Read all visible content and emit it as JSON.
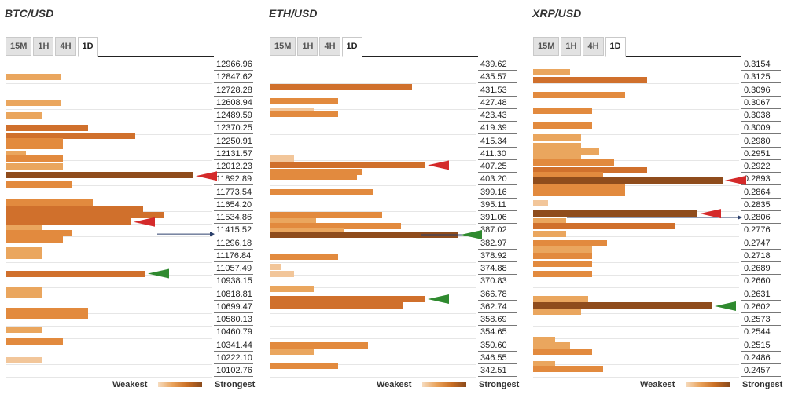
{
  "panels": [
    {
      "title": "BTC/USD",
      "tabs": [
        "15M",
        "1H",
        "4H",
        "1D"
      ],
      "active_tab": "1D",
      "prices": [
        "12966.96",
        "12847.62",
        "12728.28",
        "12608.94",
        "12489.59",
        "12370.25",
        "12250.91",
        "12131.57",
        "12012.23",
        "11892.89",
        "11773.54",
        "11654.20",
        "11534.86",
        "11415.52",
        "11296.18",
        "11176.84",
        "11057.49",
        "10938.15",
        "10818.81",
        "10699.47",
        "10580.13",
        "10460.79",
        "10341.44",
        "10222.10",
        "10102.76"
      ],
      "current_price_level": 13.3,
      "bars": [
        [
          1,
          1,
          71
        ],
        [
          3,
          1,
          71
        ],
        [
          4,
          1,
          46
        ],
        [
          5,
          3,
          105
        ],
        [
          5.6,
          3,
          165
        ],
        [
          6,
          2,
          73
        ],
        [
          6.4,
          2,
          73
        ],
        [
          7,
          1,
          26
        ],
        [
          7.4,
          2,
          73
        ],
        [
          8,
          1,
          73
        ],
        [
          8.7,
          4,
          239
        ],
        [
          9.4,
          2,
          84
        ],
        [
          10.8,
          2,
          111
        ],
        [
          11.3,
          3,
          175
        ],
        [
          11.8,
          3,
          202
        ],
        [
          12.3,
          3,
          160
        ],
        [
          12.8,
          1,
          46
        ],
        [
          13.2,
          2,
          84
        ],
        [
          13.7,
          2,
          73
        ],
        [
          14.6,
          1,
          46
        ],
        [
          15,
          1,
          46
        ],
        [
          16.4,
          3,
          178
        ],
        [
          17.7,
          1,
          46
        ],
        [
          18.1,
          1,
          46
        ],
        [
          19.3,
          2,
          105
        ],
        [
          19.7,
          2,
          105
        ],
        [
          20.8,
          1,
          46
        ],
        [
          21.7,
          2,
          73
        ],
        [
          23.2,
          0,
          46
        ]
      ],
      "arrows": [
        {
          "level": 8.75,
          "color": "#d42a2a"
        },
        {
          "level": 12.35,
          "color": "#d42a2a"
        },
        {
          "level": 16.4,
          "color": "#2f8a2f"
        }
      ]
    },
    {
      "title": "ETH/USD",
      "tabs": [
        "15M",
        "1H",
        "4H",
        "1D"
      ],
      "active_tab": "1D",
      "prices": [
        "439.62",
        "435.57",
        "431.53",
        "427.48",
        "423.43",
        "419.39",
        "415.34",
        "411.30",
        "407.25",
        "403.20",
        "399.16",
        "395.11",
        "391.06",
        "387.02",
        "382.97",
        "378.92",
        "374.88",
        "370.83",
        "366.78",
        "362.74",
        "358.69",
        "354.65",
        "350.60",
        "346.55",
        "342.51"
      ],
      "current_price_level": 13.35,
      "bars": [
        [
          1.8,
          3,
          181
        ],
        [
          2.9,
          2,
          87
        ],
        [
          3.6,
          0,
          56
        ],
        [
          3.9,
          2,
          87
        ],
        [
          7.4,
          0,
          31
        ],
        [
          7.9,
          3,
          198
        ],
        [
          8.4,
          2,
          118
        ],
        [
          8.8,
          2,
          111
        ],
        [
          10,
          2,
          132
        ],
        [
          11.8,
          2,
          143
        ],
        [
          12.3,
          1,
          59
        ],
        [
          12.7,
          2,
          167
        ],
        [
          13.1,
          1,
          94
        ],
        [
          13.35,
          4,
          240
        ],
        [
          15.1,
          2,
          87
        ],
        [
          15.9,
          0,
          14
        ],
        [
          16.4,
          0,
          31
        ],
        [
          17.6,
          1,
          56
        ],
        [
          18.4,
          3,
          198
        ],
        [
          18.9,
          3,
          170
        ],
        [
          22,
          2,
          125
        ],
        [
          22.5,
          1,
          56
        ],
        [
          23.6,
          2,
          87
        ]
      ],
      "arrows": [
        {
          "level": 7.9,
          "color": "#d42a2a"
        },
        {
          "level": 13.35,
          "color": "#2f8a2f"
        },
        {
          "level": 18.4,
          "color": "#2f8a2f"
        }
      ]
    },
    {
      "title": "XRP/USD",
      "tabs": [
        "15M",
        "1H",
        "4H",
        "1D"
      ],
      "active_tab": "1D",
      "prices": [
        "0.3154",
        "0.3125",
        "0.3096",
        "0.3067",
        "0.3038",
        "0.3009",
        "0.2980",
        "0.2951",
        "0.2922",
        "0.2893",
        "0.2864",
        "0.2835",
        "0.2806",
        "0.2776",
        "0.2747",
        "0.2718",
        "0.2689",
        "0.2660",
        "0.2631",
        "0.2602",
        "0.2573",
        "0.2544",
        "0.2515",
        "0.2486",
        "0.2457"
      ],
      "current_price_level": 12,
      "bars": [
        [
          0.6,
          1,
          47
        ],
        [
          1.2,
          3,
          145
        ],
        [
          2.4,
          2,
          117
        ],
        [
          3.6,
          2,
          75
        ],
        [
          4.8,
          2,
          75
        ],
        [
          5.7,
          1,
          61
        ],
        [
          6.4,
          1,
          61
        ],
        [
          6.8,
          1,
          84
        ],
        [
          7.3,
          1,
          61
        ],
        [
          7.7,
          2,
          103
        ],
        [
          8.3,
          3,
          145
        ],
        [
          8.7,
          2,
          89
        ],
        [
          9.1,
          4,
          241
        ],
        [
          9.6,
          2,
          117
        ],
        [
          10.1,
          2,
          117
        ],
        [
          10.9,
          0,
          19
        ],
        [
          11.7,
          4,
          209
        ],
        [
          12.3,
          1,
          42
        ],
        [
          12.7,
          3,
          181
        ],
        [
          13.3,
          1,
          42
        ],
        [
          14,
          2,
          94
        ],
        [
          14.5,
          1,
          75
        ],
        [
          15,
          2,
          75
        ],
        [
          15.6,
          2,
          75
        ],
        [
          16.4,
          2,
          75
        ],
        [
          18.4,
          1,
          70
        ],
        [
          18.9,
          4,
          228
        ],
        [
          19.4,
          1,
          61
        ],
        [
          21.6,
          1,
          28
        ],
        [
          22,
          1,
          47
        ],
        [
          22.5,
          2,
          75
        ],
        [
          23.5,
          1,
          28
        ],
        [
          23.9,
          2,
          89
        ]
      ],
      "arrows": [
        {
          "level": 9.1,
          "color": "#d42a2a"
        },
        {
          "level": 11.7,
          "color": "#d42a2a"
        },
        {
          "level": 18.95,
          "color": "#2f8a2f"
        }
      ]
    }
  ],
  "legend": {
    "weakest": "Weakest",
    "strongest": "Strongest"
  },
  "colors": [
    "#f2c69a",
    "#eaa65e",
    "#e28a3e",
    "#d0702c",
    "#8f4c1c"
  ],
  "chart_data": [
    {
      "type": "bar",
      "title": "BTC/USD",
      "orientation": "horizontal",
      "timeframe": "1D",
      "categories": [
        "12966.96",
        "12847.62",
        "12728.28",
        "12608.94",
        "12489.59",
        "12370.25",
        "12250.91",
        "12131.57",
        "12012.23",
        "11892.89",
        "11773.54",
        "11654.20",
        "11534.86",
        "11415.52",
        "11296.18",
        "11176.84",
        "11057.49",
        "10938.15",
        "10818.81",
        "10699.47",
        "10580.13",
        "10460.79",
        "10341.44",
        "10222.10",
        "10102.76"
      ],
      "current_price": "11415.52",
      "strongest_levels": [
        "11773.54",
        "11534.86",
        "10818.81"
      ]
    },
    {
      "type": "bar",
      "title": "ETH/USD",
      "orientation": "horizontal",
      "timeframe": "1D",
      "categories": [
        "439.62",
        "435.57",
        "431.53",
        "427.48",
        "423.43",
        "419.39",
        "415.34",
        "411.30",
        "407.25",
        "403.20",
        "399.16",
        "395.11",
        "391.06",
        "387.02",
        "382.97",
        "378.92",
        "374.88",
        "370.83",
        "366.78",
        "362.74",
        "358.69",
        "354.65",
        "350.60",
        "346.55",
        "342.51"
      ],
      "current_price": "387.02",
      "strongest_levels": [
        "411.30",
        "387.02",
        "366.78"
      ]
    },
    {
      "type": "bar",
      "title": "XRP/USD",
      "orientation": "horizontal",
      "timeframe": "1D",
      "categories": [
        "0.3154",
        "0.3125",
        "0.3096",
        "0.3067",
        "0.3038",
        "0.3009",
        "0.2980",
        "0.2951",
        "0.2922",
        "0.2893",
        "0.2864",
        "0.2835",
        "0.2806",
        "0.2776",
        "0.2747",
        "0.2718",
        "0.2689",
        "0.2660",
        "0.2631",
        "0.2602",
        "0.2573",
        "0.2544",
        "0.2515",
        "0.2486",
        "0.2457"
      ],
      "current_price": "0.2806",
      "strongest_levels": [
        "0.2922",
        "0.2835",
        "0.2631"
      ]
    }
  ]
}
